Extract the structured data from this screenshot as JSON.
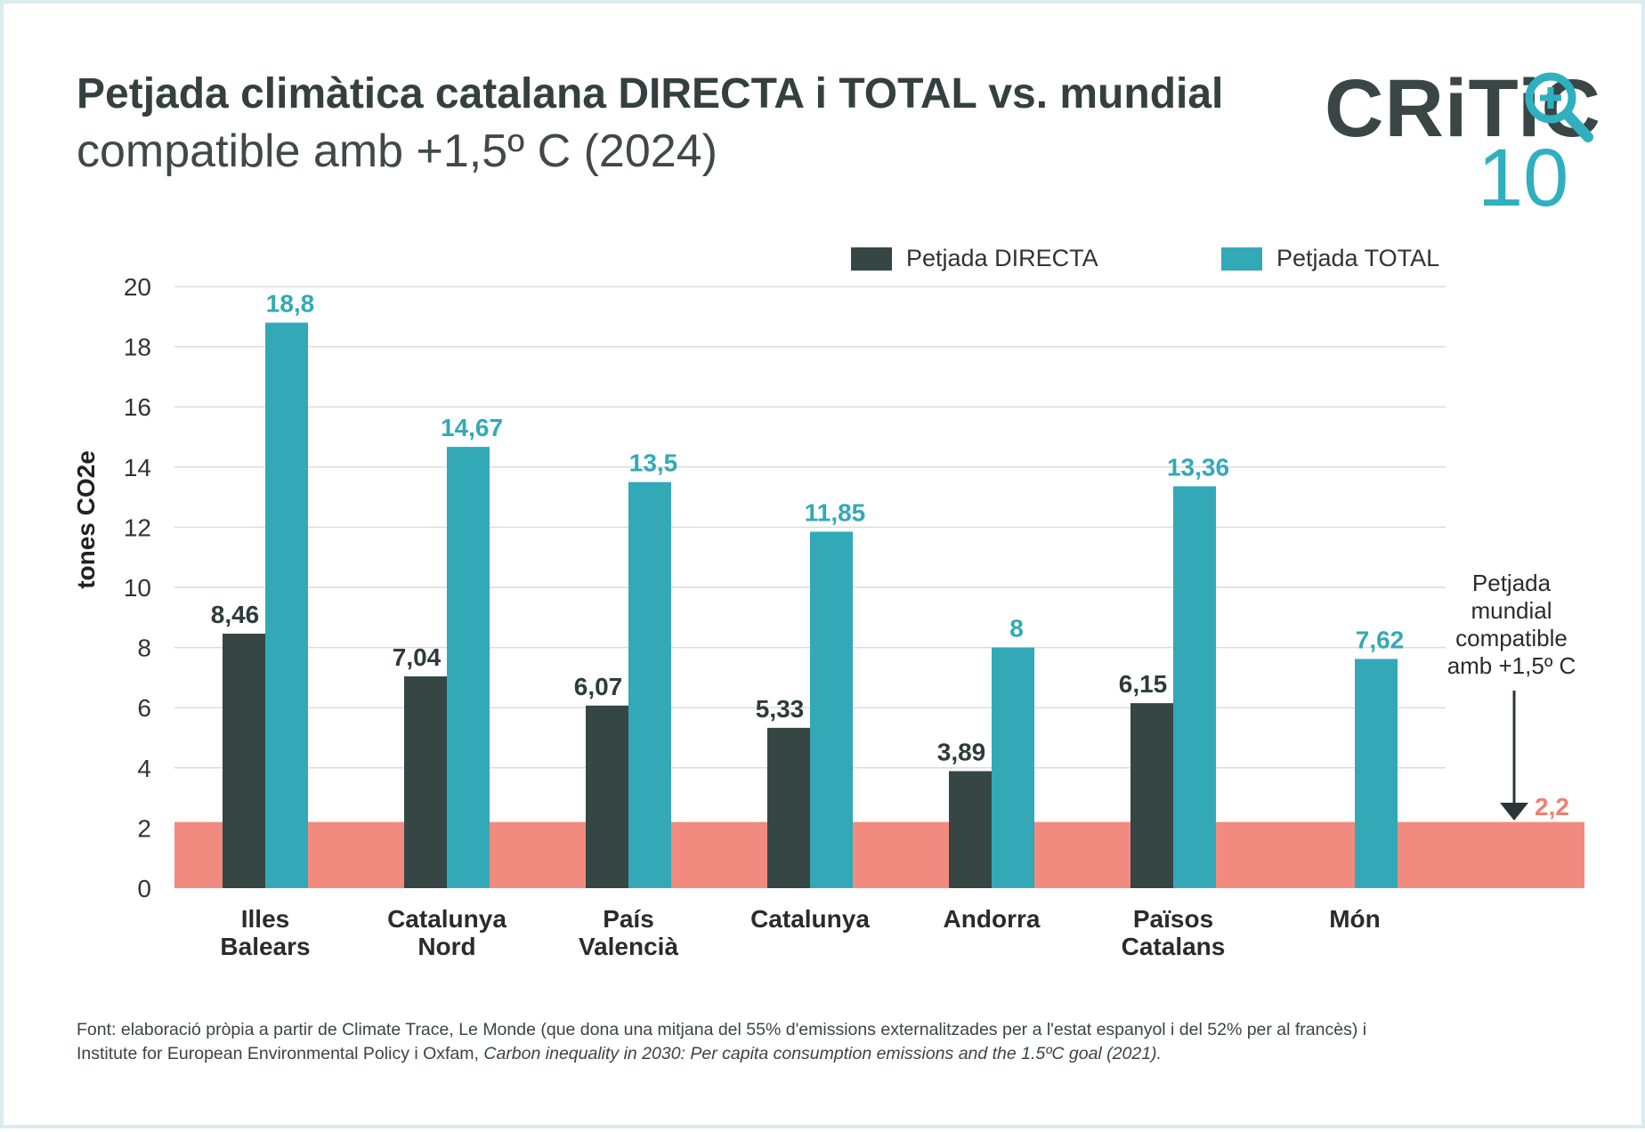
{
  "header": {
    "title": "Petjada climàtica catalana DIRECTA i TOTAL vs. mundial",
    "subtitle": "compatible amb +1,5º C (2024)"
  },
  "logo": {
    "text_top": "CRiTiC",
    "text_bottom": "10",
    "colors": {
      "dark": "#3a4646",
      "accent": "#2fb0bf"
    }
  },
  "chart_data": {
    "type": "bar",
    "categories": [
      [
        "Illes",
        "Balears"
      ],
      [
        "Catalunya",
        "Nord"
      ],
      [
        "País",
        "Valencià"
      ],
      [
        "Catalunya"
      ],
      [
        "Andorra"
      ],
      [
        "Països",
        "Catalans"
      ],
      [
        "Món"
      ]
    ],
    "series": [
      {
        "name": "Petjada DIRECTA",
        "color": "#354645",
        "values": [
          8.46,
          7.04,
          6.07,
          5.33,
          3.89,
          6.15,
          null
        ],
        "labels": [
          "8,46",
          "7,04",
          "6,07",
          "5,33",
          "3,89",
          "6,15",
          ""
        ]
      },
      {
        "name": "Petjada TOTAL",
        "color": "#33a9b7",
        "values": [
          18.8,
          14.67,
          13.5,
          11.85,
          8,
          13.36,
          7.62
        ],
        "labels": [
          "18,8",
          "14,67",
          "13,5",
          "11,85",
          "8",
          "13,36",
          "7,62"
        ]
      }
    ],
    "ylabel": "tones CO2e",
    "ylim": [
      0,
      20
    ],
    "yticks": [
      0,
      2,
      4,
      6,
      8,
      10,
      12,
      14,
      16,
      18,
      20
    ],
    "grid": true,
    "legend_position": "top-right",
    "threshold": {
      "value": 2.2,
      "label": "2,2",
      "color": "#f28b7f",
      "label_color": "#f07f72",
      "annotation": [
        "Petjada",
        "mundial",
        "compatible",
        "amb +1,5º C"
      ]
    }
  },
  "source": {
    "text_plain": "Font: elaboració pròpia a partir de Climate Trace, Le Monde (que dona una mitjana del 55% d'emissions externalitzades per a l'estat espanyol i del 52% per al francès) i",
    "text_plain2": "Institute for European Environmental Policy i Oxfam,",
    "text_italic": "Carbon inequality in 2030: Per capita consumption emissions and the 1.5ºC goal (2021)."
  }
}
